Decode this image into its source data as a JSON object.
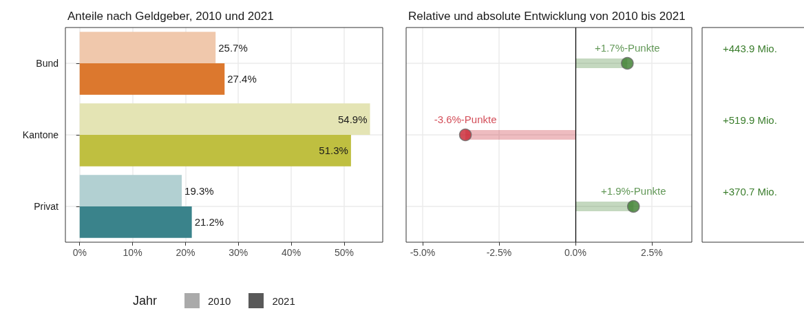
{
  "chart_data": [
    {
      "type": "bar",
      "title": "Anteile nach Geldgeber, 2010 und 2021",
      "orientation": "horizontal",
      "categories": [
        "Bund",
        "Kantone",
        "Privat"
      ],
      "legend_title": "Jahr",
      "legend": "bottom",
      "grid": true,
      "xlim": [
        -2.7,
        57.3
      ],
      "xticks": [
        {
          "value": 0,
          "label": "0%"
        },
        {
          "value": 10,
          "label": "10%"
        },
        {
          "value": 20,
          "label": "20%"
        },
        {
          "value": 30,
          "label": "30%"
        },
        {
          "value": 40,
          "label": "40%"
        },
        {
          "value": 50,
          "label": "50%"
        }
      ],
      "series": [
        {
          "name": "2010",
          "color": "#aaaaaa",
          "colors": [
            "#f0c8ac",
            "#e4e4b4",
            "#b2d0d2"
          ],
          "values": [
            25.7,
            54.9,
            19.3
          ],
          "value_labels": [
            "25.7%",
            "54.9%",
            "19.3%"
          ]
        },
        {
          "name": "2021",
          "color": "#595959",
          "colors": [
            "#dc782e",
            "#bfbf40",
            "#3a838b"
          ],
          "values": [
            27.4,
            51.3,
            21.2
          ],
          "value_labels": [
            "27.4%",
            "51.3%",
            "21.2%"
          ]
        }
      ]
    },
    {
      "type": "lollipop",
      "title": "Relative und absolute Entwicklung von 2010 bis 2021",
      "orientation": "horizontal",
      "categories": [
        null,
        null,
        null
      ],
      "tick_labels": "x",
      "grid": true,
      "xlim": [
        -5.54,
        3.81
      ],
      "xticks": [
        {
          "value": -5,
          "label": "-5.0%"
        },
        {
          "value": -2.5,
          "label": "-2.5%"
        },
        {
          "value": 0,
          "label": "0.0%"
        },
        {
          "value": 2.5,
          "label": "2.5%"
        }
      ],
      "ref_lines": [
        {
          "axis": "x",
          "value": 0,
          "label": null,
          "color": "#000000"
        }
      ],
      "values": [
        1.7,
        -3.6,
        1.9
      ],
      "colors": [
        "#3a7d2c",
        "#c8202e",
        "#3a7d2c"
      ],
      "value_labels": [
        "+1.7%-Punkte",
        "-3.6%-Punkte",
        "+1.9%-Punkte"
      ]
    },
    {
      "type": "other",
      "annotations": [
        "+443.9 Mio.",
        "+519.9 Mio.",
        "+370.7 Mio."
      ]
    }
  ]
}
